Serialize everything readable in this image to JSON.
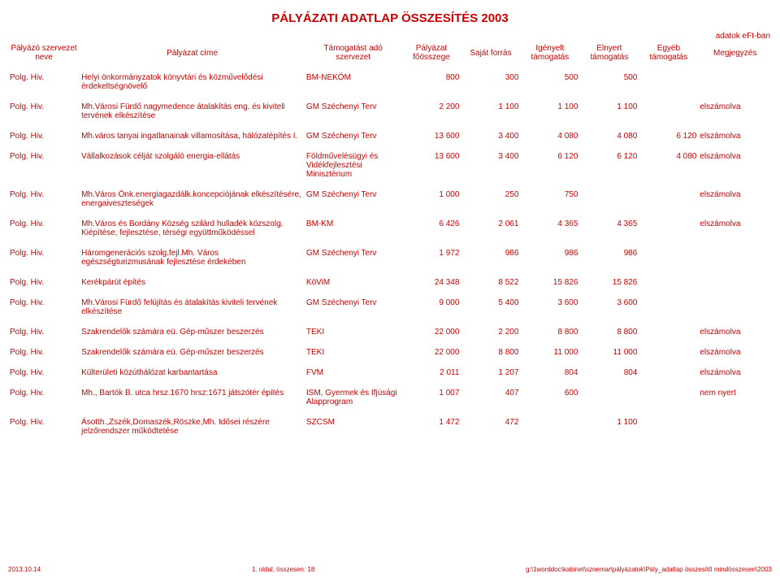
{
  "title": "PÁLYÁZATI ADATLAP ÖSSZESÍTÉS 2003",
  "note_top": "adatok eFt-ban",
  "columns": {
    "org": "Pályázó szervezet neve",
    "ptitle": "Pályázat címe",
    "supporter": "Támogatást adó szervezet",
    "total": "Pályázat főösszege",
    "own": "Saját forrás",
    "req": "Igényelt támogatás",
    "won": "Elnyert támogatás",
    "other": "Egyéb támogatás",
    "remark": "Megjegyzés"
  },
  "rows": [
    {
      "org": "Polg. Hiv.",
      "ptitle": "Helyi önkormányzatok könyvtári és közművelődési érdekeltségnövelő",
      "supporter": "BM-NEKÖM",
      "total": "800",
      "own": "300",
      "req": "500",
      "won": "500",
      "other": "",
      "remark": ""
    },
    {
      "org": "Polg. Hiv.",
      "ptitle": "Mh.Városi Fürdő nagymedence átalakítás eng. és kiviteli tervének elkészítése",
      "supporter": "GM Széchenyi Terv",
      "total": "2 200",
      "own": "1 100",
      "req": "1 100",
      "won": "1 100",
      "other": "",
      "remark": "elszámolva"
    },
    {
      "org": "Polg. Hiv.",
      "ptitle": "Mh.város tanyai ingatlanainak villamosítása, hálózatépítés I.",
      "supporter": "GM Széchenyi Terv",
      "total": "13 600",
      "own": "3 400",
      "req": "4 080",
      "won": "4 080",
      "other": "6 120",
      "remark": "elszámolva"
    },
    {
      "org": "Polg. Hiv.",
      "ptitle": "Vállalkozások célját szolgáló energia-ellátás",
      "supporter": "Földművelésügyi és Vidékfejlesztési Minisztérium",
      "total": "13 600",
      "own": "3 400",
      "req": "6 120",
      "won": "6 120",
      "other": "4 080",
      "remark": "elszámolva"
    },
    {
      "org": "Polg. Hiv.",
      "ptitle": "Mh.Város Önk.energiagazdálk.koncepciójának elkészítésére, energaiveszteségek",
      "supporter": "GM Széchenyi Terv",
      "total": "1 000",
      "own": "250",
      "req": "750",
      "won": "",
      "other": "",
      "remark": "elszámolva"
    },
    {
      "org": "Polg. Hiv.",
      "ptitle": "Mh.Város és Bordány Község szilárd hulladék közszolg. Kiépítése, fejlesztése, térségi együttműködéssel",
      "supporter": "BM-KM",
      "total": "6 426",
      "own": "2 061",
      "req": "4 365",
      "won": "4 365",
      "other": "",
      "remark": "elszámolva"
    },
    {
      "org": "Polg. Hiv.",
      "ptitle": "Háromgenerációs szolg.fejl.Mh. Város egészségturizmusának fejlesztése érdekében",
      "supporter": "GM Széchenyi Terv",
      "total": "1 972",
      "own": "986",
      "req": "986",
      "won": "986",
      "other": "",
      "remark": ""
    },
    {
      "org": "Polg. Hiv.",
      "ptitle": "Kerékpárút építés",
      "supporter": "KöViM",
      "total": "24 348",
      "own": "8 522",
      "req": "15 826",
      "won": "15 826",
      "other": "",
      "remark": ""
    },
    {
      "org": "Polg. Hiv.",
      "ptitle": "Mh.Városi Fürdő felújítás és átalakítás kiviteli tervének elkészítése",
      "supporter": "GM Széchenyi Terv",
      "total": "9 000",
      "own": "5 400",
      "req": "3 600",
      "won": "3 600",
      "other": "",
      "remark": ""
    },
    {
      "org": "Polg. Hiv.",
      "ptitle": "Szakrendelők számára eü. Gép-műszer beszerzés",
      "supporter": "TEKI",
      "total": "22 000",
      "own": "2 200",
      "req": "8 800",
      "won": "8 800",
      "other": "",
      "remark": "elszámolva"
    },
    {
      "org": "Polg. Hiv.",
      "ptitle": "Szakrendelők számára eü. Gép-műszer beszerzés",
      "supporter": "TEKI",
      "total": "22 000",
      "own": "8 800",
      "req": "11 000",
      "won": "11 000",
      "other": "",
      "remark": "elszámolva"
    },
    {
      "org": "Polg. Hiv.",
      "ptitle": "Külterületi közúthálózat karbantartása",
      "supporter": "FVM",
      "total": "2 011",
      "own": "1 207",
      "req": "804",
      "won": "804",
      "other": "",
      "remark": "elszámolva"
    },
    {
      "org": "Polg. Hiv.",
      "ptitle": "Mh., Bartók B. utca hrsz.1670 hrsz:1671 játszótér építés",
      "supporter": "ISM, Gyermek és Ifjúsági Alapprogram",
      "total": "1 007",
      "own": "407",
      "req": "600",
      "won": "",
      "other": "",
      "remark": "nem nyert"
    },
    {
      "org": "Polg. Hiv.",
      "ptitle": "Ásotth.,Zszék,Domaszék,Röszke,Mh. Idősei részére jelzőrendszer működtetése",
      "supporter": "SZCSM",
      "total": "1 472",
      "own": "472",
      "req": "",
      "won": "1 100",
      "other": "",
      "remark": ""
    }
  ],
  "footer": {
    "left": "2013.10.14",
    "center": "1. oldal, összesen: 18",
    "right": "g:\\1worddoc\\kabinet\\sznemar\\pályázatok\\Pály_adatlap összesítő mindösszesen\\2003"
  },
  "colors": {
    "text": "#cc0000",
    "background": "#ffffff"
  }
}
